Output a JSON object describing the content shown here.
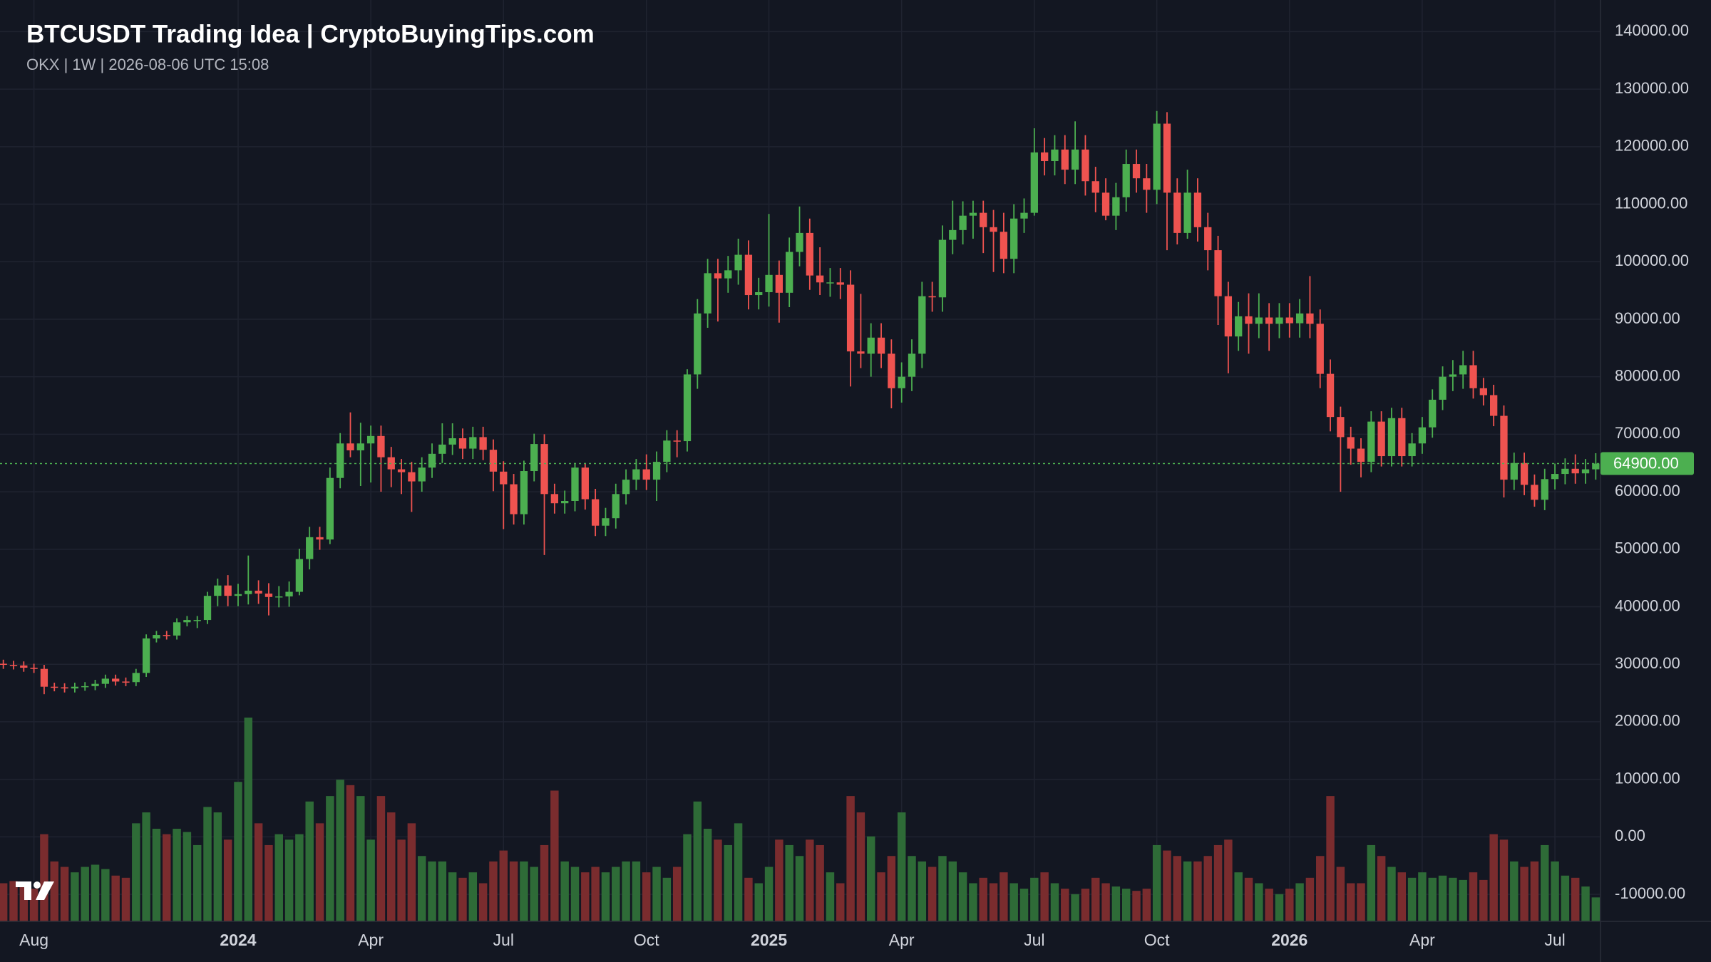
{
  "chart_data": {
    "type": "candlestick",
    "title": "BTCUSDT Trading Idea | CryptoBuyingTips.com",
    "subtitle": "OKX | 1W | 2026-08-06 UTC 15:08",
    "categories": [
      null,
      null,
      null,
      "Aug",
      null,
      null,
      null,
      null,
      null,
      null,
      null,
      null,
      null,
      null,
      null,
      null,
      null,
      null,
      null,
      null,
      null,
      null,
      null,
      "2024",
      null,
      null,
      null,
      null,
      null,
      null,
      null,
      null,
      null,
      null,
      null,
      null,
      "Apr",
      null,
      null,
      null,
      null,
      null,
      null,
      null,
      null,
      null,
      null,
      null,
      null,
      "Jul",
      null,
      null,
      null,
      null,
      null,
      null,
      null,
      null,
      null,
      null,
      null,
      null,
      null,
      "Oct",
      null,
      null,
      null,
      null,
      null,
      null,
      null,
      null,
      null,
      null,
      null,
      "2025",
      null,
      null,
      null,
      null,
      null,
      null,
      null,
      null,
      null,
      null,
      null,
      null,
      "Apr",
      null,
      null,
      null,
      null,
      null,
      null,
      null,
      null,
      null,
      null,
      null,
      null,
      "Jul",
      null,
      null,
      null,
      null,
      null,
      null,
      null,
      null,
      null,
      null,
      null,
      "Oct",
      null,
      null,
      null,
      null,
      null,
      null,
      null,
      null,
      null,
      null,
      null,
      null,
      "2026",
      null,
      null,
      null,
      null,
      null,
      null,
      null,
      null,
      null,
      null,
      null,
      null,
      "Apr",
      null,
      null,
      null,
      null,
      null,
      null,
      null,
      null,
      null,
      null,
      null,
      null,
      "Jul",
      null,
      null,
      null,
      null
    ],
    "open": [
      30100,
      29900,
      29800,
      29400,
      29200,
      26100,
      26000,
      25800,
      26100,
      26200,
      26600,
      27500,
      27000,
      26900,
      28500,
      34500,
      35100,
      35000,
      37300,
      37700,
      37700,
      41900,
      43700,
      41900,
      42200,
      42800,
      42300,
      41700,
      41800,
      42600,
      48300,
      52100,
      51700,
      62400,
      68400,
      67200,
      68400,
      69700,
      66000,
      63900,
      63400,
      61800,
      64200,
      66600,
      68200,
      69300,
      67500,
      69500,
      67300,
      63500,
      61300,
      56100,
      63600,
      68300,
      59600,
      58000,
      58400,
      64200,
      58700,
      54100,
      55400,
      59600,
      62100,
      63900,
      62100,
      65200,
      68900,
      68800,
      80400,
      91000,
      98000,
      97100,
      98500,
      101200,
      94200,
      94700,
      97700,
      94600,
      101700,
      105000,
      97600,
      96400,
      96400,
      96000,
      84400,
      84000,
      86800,
      84000,
      78000,
      80000,
      84000,
      94000,
      93800,
      103800,
      105500,
      108000,
      108500,
      106000,
      105200,
      100500,
      107500,
      108500,
      119000,
      117500,
      119500,
      116000,
      119500,
      114000,
      112000,
      108000,
      111200,
      117000,
      114500,
      112500,
      124000,
      112000,
      105000,
      112000,
      106000,
      102000,
      94000,
      87000,
      90500,
      89200,
      90300,
      89200,
      90300,
      89300,
      91000,
      89200,
      80500,
      73000,
      69500,
      67500,
      65200,
      72200,
      66200,
      72800,
      66200,
      68400,
      71200,
      76000,
      80000,
      80400,
      82000,
      78000,
      76800,
      73200,
      62100,
      65000,
      61200,
      58600,
      62200,
      63100,
      64000,
      63200,
      63900
    ],
    "high": [
      30800,
      30600,
      30500,
      30100,
      29900,
      26800,
      26700,
      26800,
      26900,
      27300,
      28200,
      28200,
      27700,
      29200,
      35200,
      35800,
      35800,
      38000,
      38400,
      38400,
      42600,
      44900,
      45500,
      44000,
      48900,
      44600,
      44100,
      43600,
      44400,
      50100,
      53900,
      53900,
      64200,
      70200,
      73800,
      72000,
      71500,
      71500,
      67800,
      65700,
      65200,
      66000,
      68400,
      71900,
      71900,
      71000,
      71300,
      71300,
      69100,
      65300,
      63100,
      65400,
      70100,
      70000,
      61400,
      60200,
      65000,
      65000,
      60500,
      57200,
      61400,
      63900,
      65700,
      66500,
      67000,
      70700,
      70700,
      81300,
      93500,
      100500,
      100500,
      101000,
      104000,
      103700,
      97200,
      108300,
      100200,
      104200,
      109600,
      107500,
      102500,
      98900,
      98900,
      98500,
      94400,
      89300,
      89300,
      86500,
      82500,
      86500,
      96500,
      96500,
      106300,
      110600,
      110500,
      110600,
      110600,
      109000,
      108500,
      110000,
      111000,
      123200,
      121500,
      122000,
      122000,
      124400,
      122000,
      116500,
      114500,
      113700,
      119500,
      119500,
      117000,
      126200,
      126000,
      114500,
      116000,
      114500,
      108500,
      104500,
      96500,
      93000,
      94500,
      94500,
      92800,
      92800,
      92800,
      93500,
      97500,
      91700,
      83000,
      74800,
      71300,
      69300,
      74000,
      74000,
      74600,
      74600,
      70200,
      73000,
      77800,
      81800,
      82900,
      84500,
      84500,
      79800,
      78600,
      75000,
      66800,
      66800,
      63000,
      64000,
      64900,
      65800,
      66500,
      65700,
      66700
    ],
    "low": [
      29200,
      29100,
      28700,
      28500,
      24800,
      25300,
      25100,
      25100,
      25400,
      25500,
      25900,
      26300,
      26200,
      26200,
      27800,
      33800,
      34300,
      34300,
      36600,
      36300,
      37000,
      40100,
      40100,
      40100,
      40400,
      40500,
      38500,
      39900,
      40000,
      42000,
      46500,
      49900,
      50900,
      60600,
      66000,
      61000,
      61600,
      60000,
      60800,
      59600,
      56500,
      60000,
      62400,
      65000,
      66400,
      65700,
      65700,
      65500,
      60100,
      53500,
      54300,
      54300,
      61800,
      49000,
      56200,
      56200,
      56600,
      56900,
      52300,
      52300,
      53600,
      57800,
      60300,
      60300,
      58400,
      63400,
      66000,
      67000,
      77900,
      88500,
      89600,
      94600,
      96000,
      91700,
      91700,
      92200,
      89400,
      92100,
      99200,
      95100,
      94200,
      93900,
      93500,
      78300,
      81500,
      80000,
      81500,
      74500,
      75500,
      77500,
      81500,
      91300,
      91300,
      101300,
      103000,
      104000,
      101500,
      98200,
      98000,
      98000,
      105000,
      108000,
      115000,
      115000,
      113500,
      113500,
      111500,
      108600,
      107200,
      105500,
      108700,
      112000,
      108500,
      110000,
      102000,
      103000,
      104000,
      103500,
      98500,
      89000,
      80600,
      84500,
      84000,
      86700,
      84500,
      86700,
      86800,
      86800,
      86700,
      78000,
      70500,
      60000,
      64700,
      62500,
      63400,
      64400,
      64400,
      64400,
      64400,
      66600,
      69400,
      74200,
      77500,
      77900,
      76200,
      75000,
      71400,
      59000,
      60300,
      59400,
      57400,
      56800,
      60400,
      61300,
      61400,
      61400,
      62100
    ],
    "close": [
      29900,
      29800,
      29400,
      29200,
      26100,
      26000,
      25800,
      26100,
      26200,
      26600,
      27500,
      27000,
      26900,
      28500,
      34500,
      35100,
      35000,
      37300,
      37700,
      37700,
      41900,
      43700,
      41900,
      42200,
      42800,
      42300,
      41700,
      41800,
      42600,
      48300,
      52100,
      51700,
      62400,
      68400,
      67200,
      68400,
      69700,
      66000,
      63900,
      63400,
      61800,
      64200,
      66600,
      68200,
      69300,
      67500,
      69500,
      67300,
      63500,
      61300,
      56100,
      63600,
      68300,
      59600,
      58000,
      58400,
      64200,
      58700,
      54100,
      55400,
      59600,
      62100,
      63900,
      62100,
      65200,
      68900,
      68800,
      80400,
      91000,
      98000,
      97100,
      98500,
      101200,
      94200,
      94700,
      97700,
      94600,
      101700,
      105000,
      97600,
      96400,
      96400,
      96000,
      84400,
      84000,
      86800,
      84000,
      78000,
      80000,
      84000,
      94000,
      93800,
      103800,
      105500,
      108000,
      108500,
      106000,
      105200,
      100500,
      107500,
      108500,
      119000,
      117500,
      119500,
      116000,
      119500,
      114000,
      112000,
      108000,
      111200,
      117000,
      114500,
      112500,
      124000,
      112000,
      105000,
      112000,
      106000,
      102000,
      94000,
      87000,
      90500,
      89200,
      90300,
      89200,
      90300,
      89300,
      91000,
      89200,
      80500,
      73000,
      69500,
      67500,
      65200,
      72200,
      66200,
      72800,
      66200,
      68400,
      71200,
      76000,
      80000,
      80400,
      82000,
      78000,
      76800,
      73200,
      62100,
      65000,
      61200,
      58600,
      62200,
      63100,
      64000,
      63200,
      63900,
      64900
    ],
    "volume": [
      35,
      37,
      34,
      30,
      80,
      55,
      50,
      45,
      50,
      52,
      48,
      42,
      40,
      90,
      100,
      85,
      80,
      85,
      82,
      70,
      105,
      100,
      75,
      128,
      187,
      90,
      70,
      80,
      75,
      80,
      110,
      90,
      115,
      130,
      125,
      115,
      75,
      115,
      100,
      75,
      90,
      60,
      55,
      55,
      45,
      40,
      45,
      35,
      55,
      65,
      55,
      55,
      50,
      70,
      120,
      55,
      50,
      45,
      50,
      45,
      50,
      55,
      55,
      45,
      50,
      40,
      50,
      80,
      110,
      85,
      75,
      70,
      90,
      40,
      35,
      50,
      75,
      70,
      60,
      75,
      70,
      45,
      35,
      115,
      100,
      78,
      45,
      60,
      100,
      60,
      55,
      50,
      60,
      55,
      45,
      35,
      40,
      35,
      45,
      35,
      30,
      40,
      45,
      35,
      30,
      25,
      30,
      40,
      35,
      32,
      30,
      28,
      30,
      70,
      65,
      60,
      55,
      55,
      60,
      70,
      75,
      45,
      40,
      35,
      30,
      25,
      30,
      35,
      40,
      60,
      115,
      50,
      35,
      35,
      70,
      60,
      50,
      45,
      40,
      45,
      40,
      42,
      40,
      38,
      45,
      38,
      80,
      75,
      55,
      50,
      55,
      70,
      55,
      42,
      40,
      32,
      22
    ],
    "ylim": [
      -14700,
      145500
    ],
    "yticks": [
      {
        "value": 140000,
        "label": "140000.00"
      },
      {
        "value": 130000,
        "label": "130000.00"
      },
      {
        "value": 120000,
        "label": "120000.00"
      },
      {
        "value": 110000,
        "label": "110000.00"
      },
      {
        "value": 100000,
        "label": "100000.00"
      },
      {
        "value": 90000,
        "label": "90000.00"
      },
      {
        "value": 80000,
        "label": "80000.00"
      },
      {
        "value": 70000,
        "label": "70000.00"
      },
      {
        "value": 60000,
        "label": "60000.00"
      },
      {
        "value": 50000,
        "label": "50000.00"
      },
      {
        "value": 40000,
        "label": "40000.00"
      },
      {
        "value": 30000,
        "label": "30000.00"
      },
      {
        "value": 20000,
        "label": "20000.00"
      },
      {
        "value": 10000,
        "label": "10000.00"
      },
      {
        "value": 0,
        "label": "0.00"
      },
      {
        "value": -10000,
        "label": "-10000.00"
      }
    ],
    "grid": true,
    "up_color": "#4caf50",
    "down_color": "#ef5350",
    "volume_up_color": "#2e6b37",
    "volume_down_color": "#7a2c2e",
    "price_line": {
      "value": 64900,
      "label": "64900.00"
    },
    "price_line_color": "#4caf50"
  }
}
